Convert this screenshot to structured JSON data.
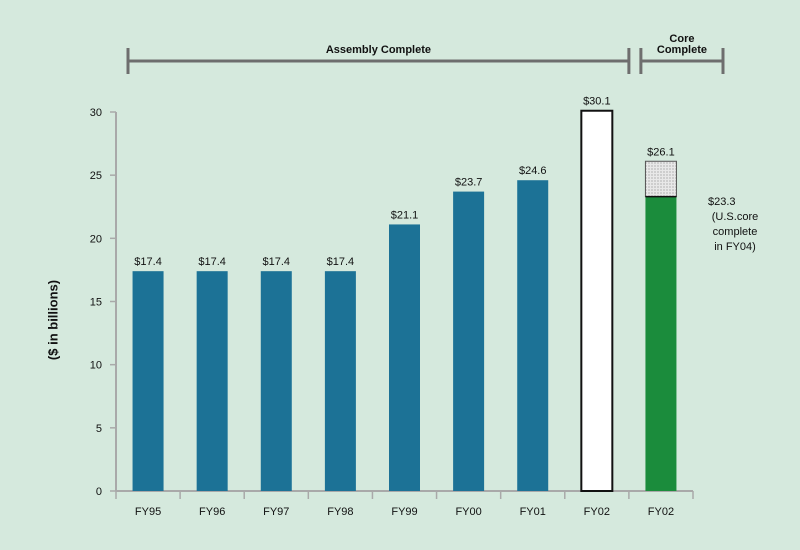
{
  "chart_data": {
    "type": "bar",
    "ylabel": "($ in billions)",
    "ylim": [
      0,
      30
    ],
    "yticks": [
      0,
      5,
      10,
      15,
      20,
      25,
      30
    ],
    "grid": false,
    "categories": [
      "FY95",
      "FY96",
      "FY97",
      "FY98",
      "FY99",
      "FY00",
      "FY01",
      "FY02",
      "FY02"
    ],
    "values": [
      17.4,
      17.4,
      17.4,
      17.4,
      21.1,
      23.7,
      24.6,
      30.1,
      26.1
    ],
    "value_labels": [
      "$17.4",
      "$17.4",
      "$17.4",
      "$17.4",
      "$21.1",
      "$23.7",
      "$24.6",
      "$30.1",
      "$26.1"
    ],
    "bar_styles": [
      "solid",
      "solid",
      "solid",
      "solid",
      "solid",
      "solid",
      "solid",
      "outline",
      "stacked"
    ],
    "stacked_bar": {
      "index": 8,
      "lower_value": 23.3,
      "upper_value": 26.1,
      "lower_color": "#1b8c3c",
      "upper_pattern": "dotted-gray"
    },
    "phases": [
      {
        "label": "Assembly Complete",
        "from_index": 0,
        "to_index": 7
      },
      {
        "label": "Core Complete",
        "from_index": 8,
        "to_index": 8
      }
    ],
    "annotation": {
      "value_label": "$23.3",
      "lines": [
        "(U.S.core",
        "complete",
        "in FY04)"
      ]
    }
  },
  "colors": {
    "background": "#d5e9dd",
    "bar": "#1c7296",
    "outline_bar_fill": "#ffffff",
    "stack_lower": "#1b8c3c",
    "stack_upper": "#e6e6e6",
    "axis": "#a9a9a9",
    "phase_line": "#6e6e6e"
  }
}
